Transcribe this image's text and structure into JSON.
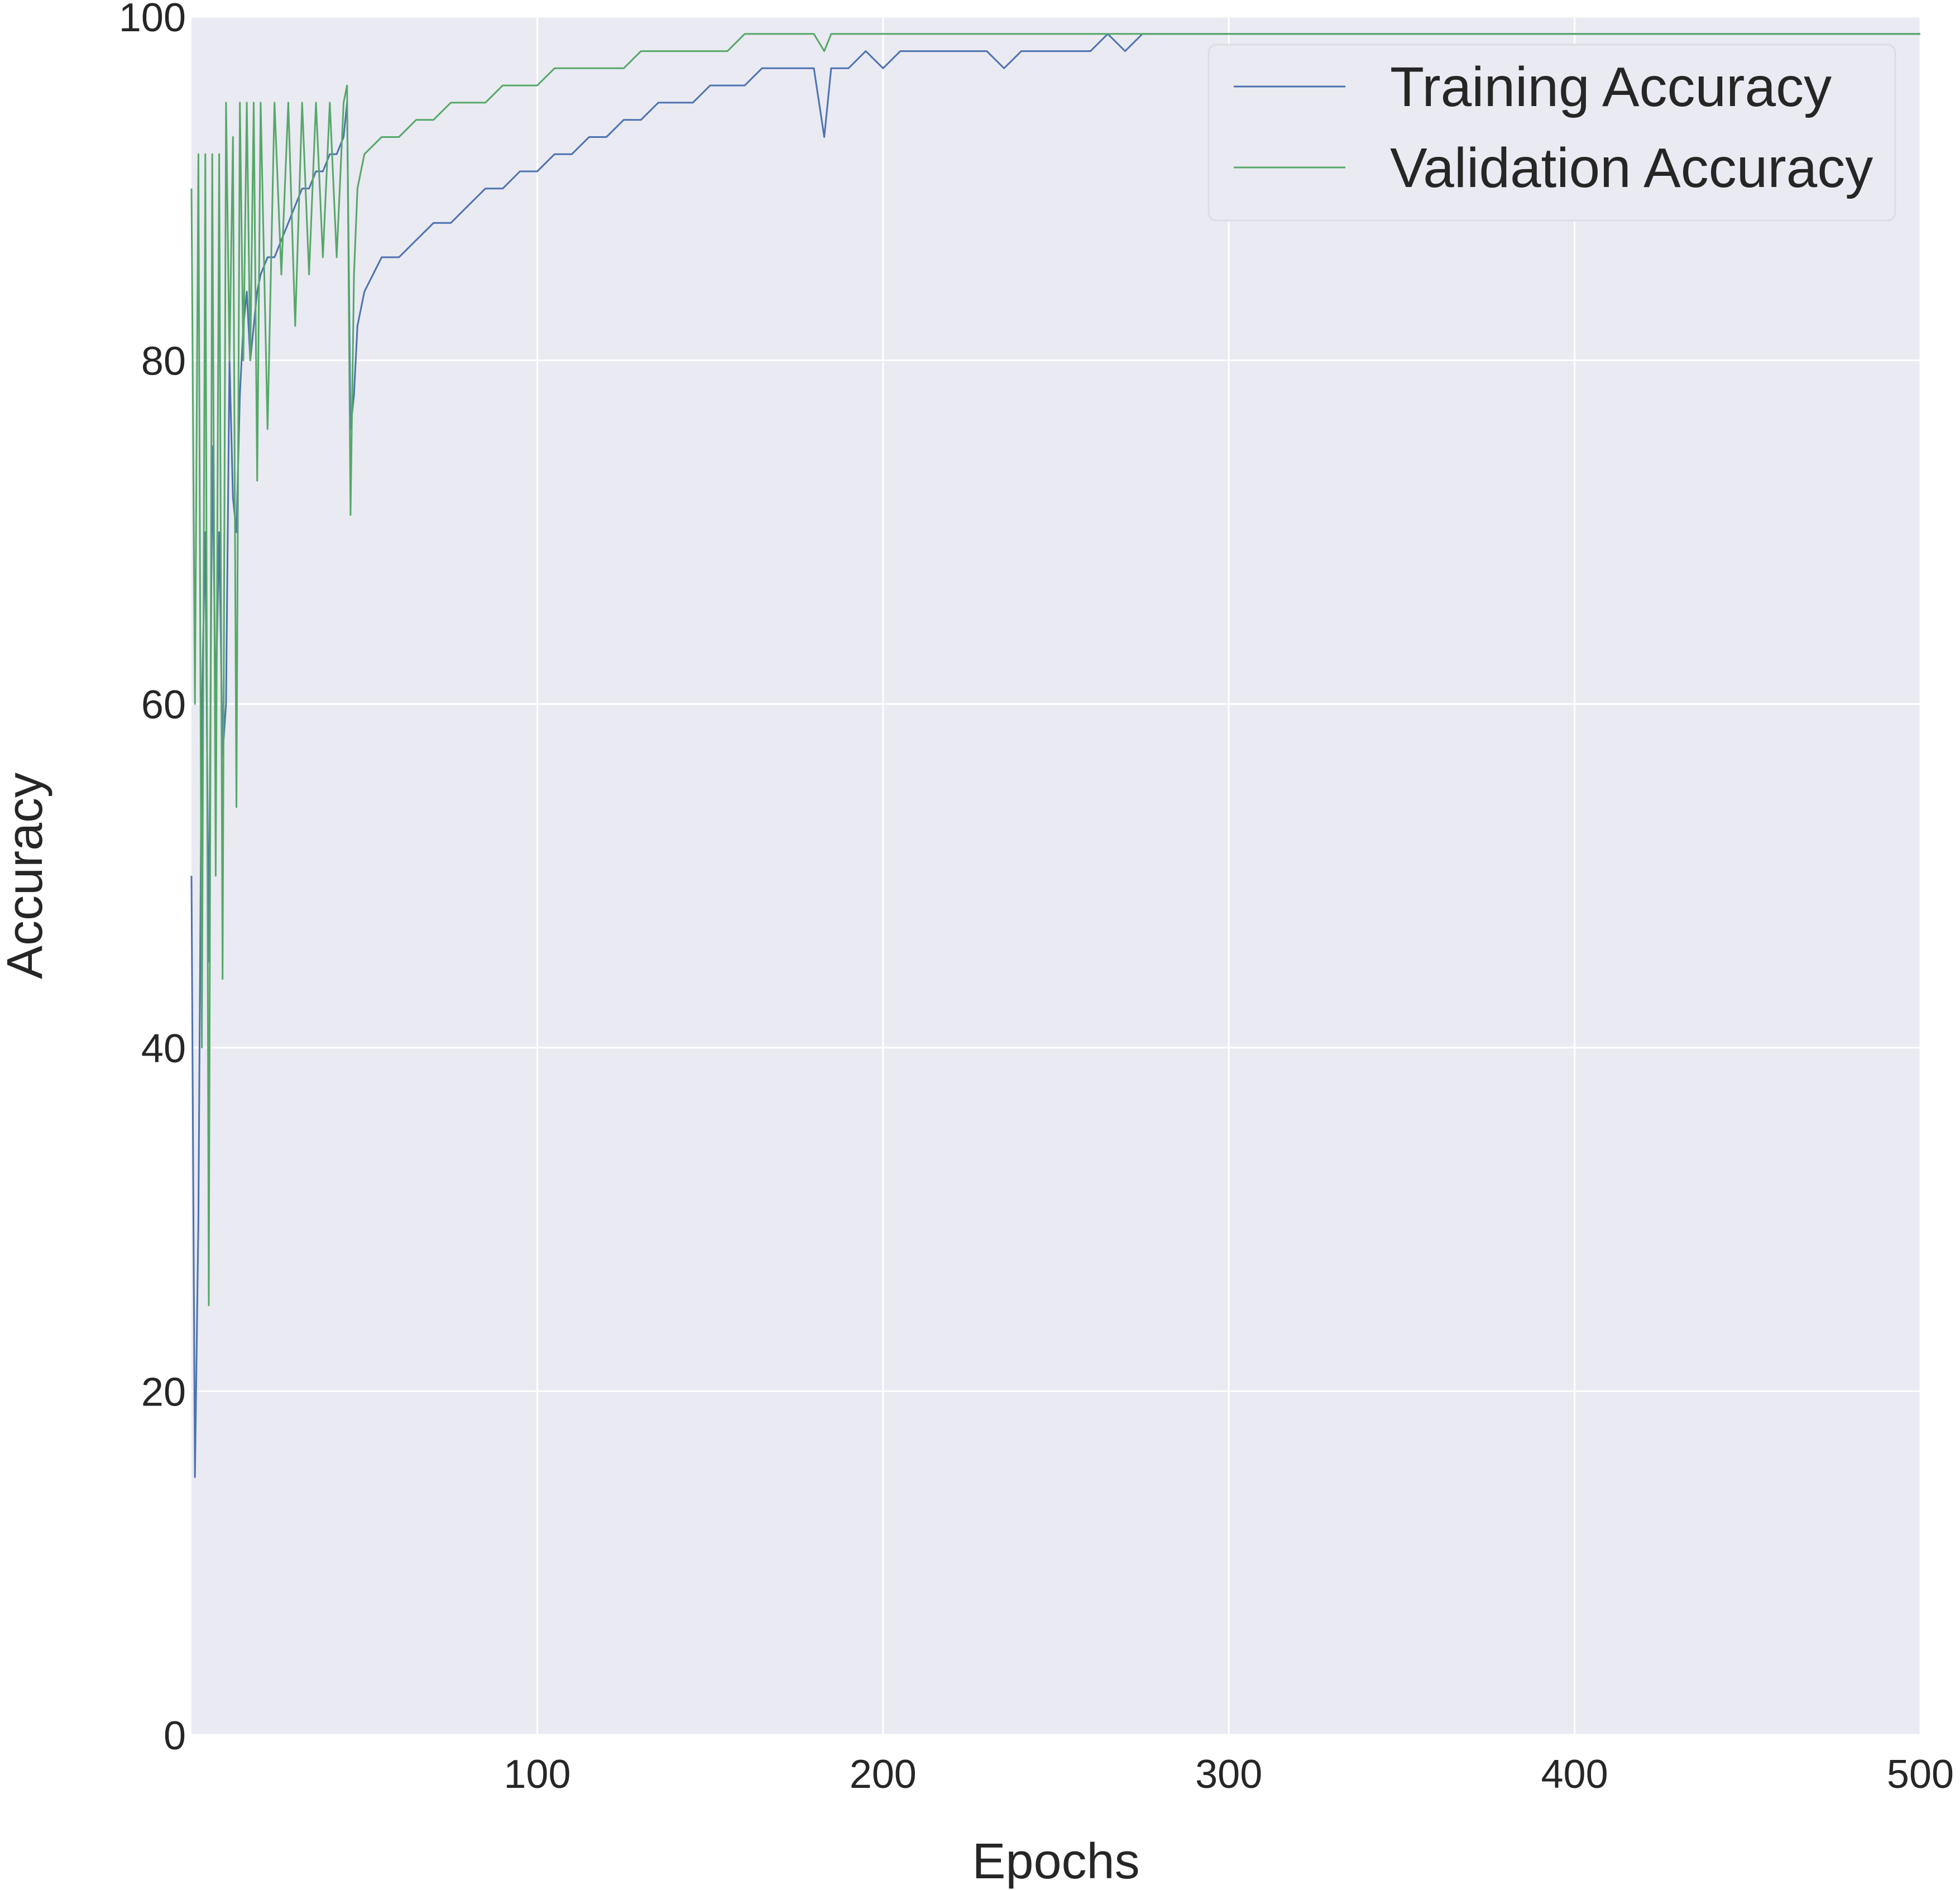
{
  "chart_data": {
    "type": "line",
    "title": "",
    "xlabel": "Epochs",
    "ylabel": "Accuracy",
    "xlim": [
      0,
      500
    ],
    "ylim": [
      0,
      100
    ],
    "xticks": [
      100,
      200,
      300,
      400,
      500
    ],
    "yticks": [
      0,
      20,
      40,
      60,
      80,
      100
    ],
    "xtick_labels": [
      "100",
      "200",
      "300",
      "400",
      "500"
    ],
    "ytick_labels": [
      "0",
      "20",
      "40",
      "60",
      "80",
      "100"
    ],
    "grid": true,
    "legend_position": "top-right",
    "background_color": "#EAEAF2",
    "grid_color": "#FFFFFF",
    "series": [
      {
        "name": "Training Accuracy",
        "color": "#4C72B0",
        "x": [
          0,
          1,
          2,
          3,
          4,
          5,
          6,
          7,
          8,
          9,
          10,
          11,
          12,
          13,
          14,
          15,
          16,
          17,
          18,
          19,
          20,
          22,
          24,
          26,
          28,
          30,
          32,
          34,
          36,
          38,
          40,
          42,
          44,
          45,
          46,
          47,
          48,
          50,
          55,
          60,
          65,
          70,
          75,
          80,
          85,
          90,
          95,
          100,
          105,
          110,
          115,
          120,
          125,
          130,
          135,
          140,
          145,
          150,
          155,
          160,
          165,
          170,
          175,
          180,
          183,
          185,
          190,
          195,
          200,
          205,
          210,
          215,
          220,
          225,
          230,
          235,
          240,
          245,
          250,
          255,
          260,
          265,
          270,
          275,
          280,
          285,
          290,
          295,
          300,
          310,
          320,
          330,
          340,
          350,
          360,
          370,
          380,
          390,
          400,
          410,
          420,
          430,
          440,
          450,
          460,
          470,
          480,
          490,
          500
        ],
        "y": [
          50,
          15,
          30,
          60,
          70,
          45,
          75,
          60,
          70,
          57,
          60,
          80,
          72,
          70,
          78,
          82,
          84,
          80,
          82,
          84,
          85,
          86,
          86,
          87,
          88,
          89,
          90,
          90,
          91,
          91,
          92,
          92,
          93,
          95,
          76,
          78,
          82,
          84,
          86,
          86,
          87,
          88,
          88,
          89,
          90,
          90,
          91,
          91,
          92,
          92,
          93,
          93,
          94,
          94,
          95,
          95,
          95,
          96,
          96,
          96,
          97,
          97,
          97,
          97,
          93,
          97,
          97,
          98,
          97,
          98,
          98,
          98,
          98,
          98,
          98,
          97,
          98,
          98,
          98,
          98,
          98,
          99,
          98,
          99,
          99,
          99,
          99,
          99,
          99,
          99,
          99,
          99,
          99,
          99,
          99,
          99,
          99,
          99,
          99,
          99,
          99,
          99,
          99,
          99,
          99,
          99,
          99,
          99,
          99
        ]
      },
      {
        "name": "Validation Accuracy",
        "color": "#55A868",
        "x": [
          0,
          1,
          2,
          3,
          4,
          5,
          6,
          7,
          8,
          9,
          10,
          11,
          12,
          13,
          14,
          15,
          16,
          17,
          18,
          19,
          20,
          22,
          24,
          26,
          28,
          30,
          32,
          34,
          36,
          38,
          40,
          42,
          44,
          45,
          46,
          47,
          48,
          50,
          55,
          60,
          65,
          70,
          75,
          80,
          85,
          90,
          95,
          100,
          105,
          110,
          115,
          120,
          125,
          130,
          135,
          140,
          145,
          150,
          155,
          160,
          165,
          170,
          175,
          180,
          183,
          185,
          190,
          195,
          200,
          205,
          210,
          215,
          220,
          225,
          230,
          235,
          240,
          245,
          250,
          255,
          260,
          265,
          270,
          275,
          280,
          285,
          290,
          295,
          300,
          310,
          320,
          330,
          340,
          350,
          360,
          370,
          380,
          390,
          400,
          410,
          420,
          430,
          440,
          450,
          460,
          470,
          480,
          490,
          500
        ],
        "y": [
          90,
          60,
          92,
          40,
          92,
          25,
          92,
          50,
          92,
          44,
          95,
          80,
          93,
          54,
          95,
          80,
          95,
          80,
          95,
          73,
          95,
          76,
          95,
          85,
          95,
          82,
          95,
          85,
          95,
          86,
          95,
          86,
          95,
          96,
          71,
          85,
          90,
          92,
          93,
          93,
          94,
          94,
          95,
          95,
          95,
          96,
          96,
          96,
          97,
          97,
          97,
          97,
          97,
          98,
          98,
          98,
          98,
          98,
          98,
          99,
          99,
          99,
          99,
          99,
          98,
          99,
          99,
          99,
          99,
          99,
          99,
          99,
          99,
          99,
          99,
          99,
          99,
          99,
          99,
          99,
          99,
          99,
          99,
          99,
          99,
          99,
          99,
          99,
          99,
          99,
          99,
          99,
          99,
          99,
          99,
          99,
          99,
          99,
          99,
          99,
          99,
          99,
          99,
          99,
          99,
          99,
          99,
          99,
          99
        ]
      }
    ]
  }
}
